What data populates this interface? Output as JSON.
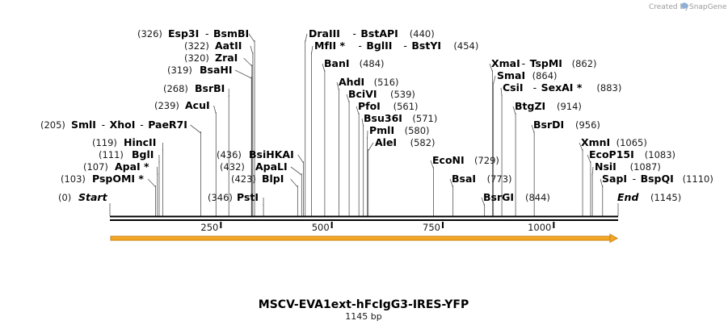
{
  "credit": {
    "text": "Created by",
    "brand": "SnapGene"
  },
  "map": {
    "title": "MSCV-EVA1ext-hFcIgG3-IRES-YFP",
    "size_label": "1145 bp",
    "length_bp": 1145,
    "axis_ticks": [
      "250",
      "500",
      "750",
      "1000"
    ],
    "start": {
      "pos": "(0)",
      "name": "Start"
    },
    "end": {
      "pos": "(1145)",
      "name": "End"
    },
    "colors": {
      "feature": "#f5a623",
      "feature_outline": "#c7861a"
    },
    "labels": [
      {
        "pos": "(326)",
        "names": [
          "Esp3I",
          "BsmBI"
        ],
        "cut": 326,
        "star": [
          false,
          false
        ]
      },
      {
        "pos": "(322)",
        "names": [
          "AatII"
        ],
        "cut": 322,
        "star": [
          false
        ]
      },
      {
        "pos": "(320)",
        "names": [
          "ZraI"
        ],
        "cut": 320,
        "star": [
          false
        ]
      },
      {
        "pos": "(319)",
        "names": [
          "BsaHI"
        ],
        "cut": 319,
        "star": [
          false
        ]
      },
      {
        "pos": "(268)",
        "names": [
          "BsrBI"
        ],
        "cut": 268,
        "star": [
          false
        ]
      },
      {
        "pos": "(239)",
        "names": [
          "AcuI"
        ],
        "cut": 239,
        "star": [
          false
        ]
      },
      {
        "pos": "(205)",
        "names": [
          "SmlI",
          "XhoI",
          "PaeR7I"
        ],
        "cut": 205,
        "star": [
          false,
          false,
          false
        ]
      },
      {
        "pos": "(119)",
        "names": [
          "HincII"
        ],
        "cut": 119,
        "star": [
          false
        ]
      },
      {
        "pos": "(111)",
        "names": [
          "BglI"
        ],
        "cut": 111,
        "star": [
          false
        ]
      },
      {
        "pos": "(107)",
        "names": [
          "ApaI"
        ],
        "cut": 107,
        "star": [
          true
        ]
      },
      {
        "pos": "(103)",
        "names": [
          "PspOMI"
        ],
        "cut": 103,
        "star": [
          true
        ]
      },
      {
        "pos": "(436)",
        "names": [
          "BsiHKAI"
        ],
        "cut": 436,
        "star": [
          false
        ]
      },
      {
        "pos": "(432)",
        "names": [
          "ApaLI"
        ],
        "cut": 432,
        "star": [
          false
        ]
      },
      {
        "pos": "(423)",
        "names": [
          "BlpI"
        ],
        "cut": 423,
        "star": [
          false
        ]
      },
      {
        "pos": "(346)",
        "names": [
          "PstI"
        ],
        "cut": 346,
        "star": [
          false
        ]
      },
      {
        "pos": "(440)",
        "names": [
          "DraIII",
          "BstAPI"
        ],
        "cut": 440,
        "star": [
          false,
          false
        ]
      },
      {
        "pos": "(454)",
        "names": [
          "MfII",
          "BglII",
          "BstYI"
        ],
        "cut": 454,
        "star": [
          true,
          false,
          false
        ]
      },
      {
        "pos": "(484)",
        "names": [
          "BanI"
        ],
        "cut": 484,
        "star": [
          false
        ]
      },
      {
        "pos": "(516)",
        "names": [
          "AhdI"
        ],
        "cut": 516,
        "star": [
          false
        ]
      },
      {
        "pos": "(539)",
        "names": [
          "BciVI"
        ],
        "cut": 539,
        "star": [
          false
        ]
      },
      {
        "pos": "(561)",
        "names": [
          "PfoI"
        ],
        "cut": 561,
        "star": [
          false
        ]
      },
      {
        "pos": "(571)",
        "names": [
          "Bsu36I"
        ],
        "cut": 571,
        "star": [
          false
        ]
      },
      {
        "pos": "(580)",
        "names": [
          "PmlI"
        ],
        "cut": 580,
        "star": [
          false
        ]
      },
      {
        "pos": "(582)",
        "names": [
          "AleI"
        ],
        "cut": 582,
        "star": [
          false
        ]
      },
      {
        "pos": "(729)",
        "names": [
          "EcoNI"
        ],
        "cut": 729,
        "star": [
          false
        ]
      },
      {
        "pos": "(773)",
        "names": [
          "BsaI"
        ],
        "cut": 773,
        "star": [
          false
        ]
      },
      {
        "pos": "(844)",
        "names": [
          "BsrGI"
        ],
        "cut": 844,
        "star": [
          false
        ]
      },
      {
        "pos": "(862)",
        "names": [
          "XmaI",
          "TspMI"
        ],
        "cut": 862,
        "star": [
          false,
          false
        ]
      },
      {
        "pos": "(864)",
        "names": [
          "SmaI"
        ],
        "cut": 864,
        "star": [
          false
        ]
      },
      {
        "pos": "(883)",
        "names": [
          "CsiI",
          "SexAI"
        ],
        "cut": 883,
        "star": [
          false,
          true
        ]
      },
      {
        "pos": "(914)",
        "names": [
          "BtgZI"
        ],
        "cut": 914,
        "star": [
          false
        ]
      },
      {
        "pos": "(956)",
        "names": [
          "BsrDI"
        ],
        "cut": 956,
        "star": [
          false
        ]
      },
      {
        "pos": "(1065)",
        "names": [
          "XmnI"
        ],
        "cut": 1065,
        "star": [
          false
        ]
      },
      {
        "pos": "(1083)",
        "names": [
          "EcoP15I"
        ],
        "cut": 1083,
        "star": [
          false
        ]
      },
      {
        "pos": "(1087)",
        "names": [
          "NsiI"
        ],
        "cut": 1087,
        "star": [
          false
        ]
      },
      {
        "pos": "(1110)",
        "names": [
          "SapI",
          "BspQI"
        ],
        "cut": 1110,
        "star": [
          false,
          false
        ]
      }
    ]
  }
}
